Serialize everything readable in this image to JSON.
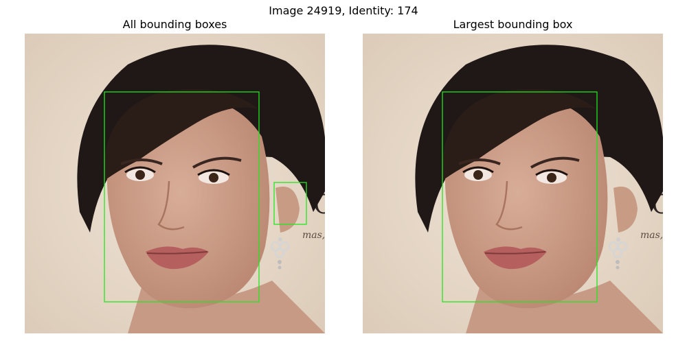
{
  "figure": {
    "suptitle": "Image 24919, Identity: 174"
  },
  "panels": [
    {
      "title": "All bounding boxes",
      "box_count": 2
    },
    {
      "title": "Largest bounding box",
      "box_count": 1
    }
  ],
  "colors": {
    "box": "#22e61e",
    "background_wall": "#e9ddd0",
    "hair": "#1e1816",
    "skin": "#caa08d",
    "lips": "#b5605e",
    "earring": "#c9c9c9"
  },
  "image": {
    "text_fragments": [
      "C",
      "mas,"
    ]
  }
}
